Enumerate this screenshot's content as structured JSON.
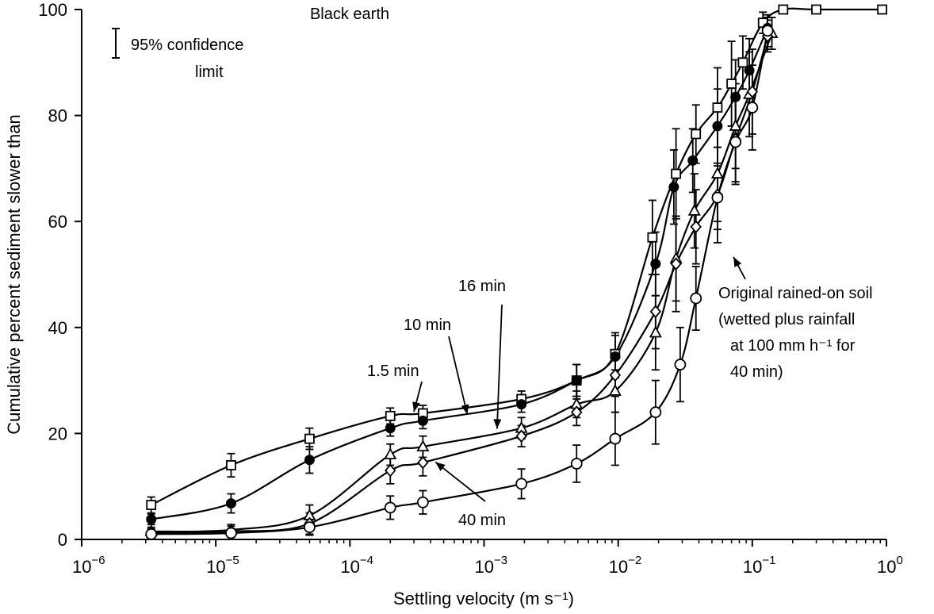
{
  "chart_data": {
    "type": "line",
    "title": "Black earth",
    "xlabel": "Settling velocity (m s⁻¹)",
    "ylabel": "Cumulative percent sediment slower than",
    "x_scale": "log",
    "xlim": [
      1e-06,
      1
    ],
    "ylim": [
      0,
      100
    ],
    "x_ticks": [
      {
        "value": 1e-06,
        "base": "10",
        "exp": "−6"
      },
      {
        "value": 1e-05,
        "base": "10",
        "exp": "−5"
      },
      {
        "value": 0.0001,
        "base": "10",
        "exp": "−4"
      },
      {
        "value": 0.001,
        "base": "10",
        "exp": "−3"
      },
      {
        "value": 0.01,
        "base": "10",
        "exp": "−2"
      },
      {
        "value": 0.1,
        "base": "10",
        "exp": "−1"
      },
      {
        "value": 1,
        "base": "10",
        "exp": "0"
      }
    ],
    "y_ticks": [
      0,
      20,
      40,
      60,
      80,
      100
    ],
    "grid": false,
    "legend_note": {
      "line1": "95% confidence",
      "line2": "limit"
    },
    "series": [
      {
        "name": "1.5 min",
        "marker": "square-open",
        "x": [
          3.3e-06,
          1.3e-05,
          5e-05,
          0.0002,
          0.00035,
          0.0019,
          0.0049,
          0.0095,
          0.018,
          0.027,
          0.038,
          0.055,
          0.07,
          0.085,
          0.12,
          0.17,
          0.3,
          0.93
        ],
        "y": [
          6.5,
          14,
          19,
          23.3,
          23.8,
          26.5,
          30,
          35,
          57,
          69,
          76.5,
          81.5,
          86,
          90,
          97.5,
          100,
          100,
          100
        ],
        "err": [
          1.5,
          2.2,
          2,
          1.5,
          1.5,
          1.5,
          3,
          4,
          7,
          8.5,
          5.5,
          7.5,
          8,
          5,
          2,
          0,
          0,
          0
        ]
      },
      {
        "name": "10 min",
        "marker": "circle-filled",
        "x": [
          3.3e-06,
          1.3e-05,
          5e-05,
          0.0002,
          0.00035,
          0.0019,
          0.0049,
          0.0095,
          0.019,
          0.026,
          0.036,
          0.055,
          0.075,
          0.095,
          0.13
        ],
        "y": [
          3.8,
          6.8,
          15,
          21,
          22.4,
          25.5,
          30,
          34.5,
          52,
          66.5,
          71.5,
          78,
          83.5,
          88.5,
          96.5
        ],
        "err": [
          1,
          1.8,
          2.5,
          1.5,
          1.5,
          1.5,
          3,
          4,
          6,
          7,
          6,
          7,
          7,
          6,
          2
        ]
      },
      {
        "name": "16 min",
        "marker": "triangle-open",
        "x": [
          3.3e-06,
          1.3e-05,
          5e-05,
          0.0002,
          0.00035,
          0.0019,
          0.0049,
          0.0095,
          0.019,
          0.027,
          0.037,
          0.055,
          0.075,
          0.095,
          0.14
        ],
        "y": [
          1.5,
          1.8,
          4.5,
          16,
          17.5,
          21,
          25.5,
          28,
          39,
          53,
          62,
          69,
          78,
          84,
          95.5
        ],
        "err": [
          0.8,
          1,
          2,
          2,
          2,
          2,
          2.5,
          4,
          7,
          8,
          7,
          9,
          8,
          8,
          3
        ]
      },
      {
        "name": "40 min",
        "marker": "diamond-open",
        "x": [
          3.3e-06,
          1.3e-05,
          5e-05,
          0.0002,
          0.00035,
          0.0019,
          0.0049,
          0.0095,
          0.019,
          0.027,
          0.038,
          0.055,
          0.075,
          0.1,
          0.13
        ],
        "y": [
          1.2,
          1.5,
          3,
          13,
          14.5,
          19.5,
          24,
          31,
          43,
          52,
          59,
          65,
          75.5,
          84.5,
          95
        ],
        "err": [
          0.8,
          1,
          2,
          2.5,
          2.5,
          2,
          2.5,
          4,
          7,
          9,
          7,
          9,
          8,
          8,
          3
        ]
      },
      {
        "name": "Original rained-on soil",
        "marker": "circle-open",
        "x": [
          3.3e-06,
          1.3e-05,
          5e-05,
          0.0002,
          0.00035,
          0.0019,
          0.0049,
          0.0095,
          0.019,
          0.029,
          0.038,
          0.055,
          0.075,
          0.1,
          0.13
        ],
        "y": [
          1,
          1.2,
          2.3,
          6,
          7,
          10.5,
          14.3,
          19,
          24,
          33,
          45.5,
          64.5,
          75,
          81.5,
          96
        ],
        "err": [
          0.5,
          0.8,
          1.5,
          2.2,
          2.2,
          2.8,
          3.5,
          5,
          6,
          7,
          6,
          6,
          8,
          8,
          3
        ]
      }
    ],
    "annotations": [
      {
        "id": "ann-1-5",
        "text": "1.5 min",
        "target_x": 0.0003,
        "target_y": 23.5
      },
      {
        "id": "ann-10",
        "text": "10 min",
        "target_x": 0.00075,
        "target_y": 23
      },
      {
        "id": "ann-16",
        "text": "16 min",
        "target_x": 0.00125,
        "target_y": 20
      },
      {
        "id": "ann-40",
        "text": "40 min",
        "target_x": 0.0004,
        "target_y": 15.5
      },
      {
        "id": "ann-orig",
        "lines": [
          "Original rained-on soil",
          "(wetted plus rainfall",
          "at 100 mm h⁻¹ for",
          "40 min)"
        ],
        "target_x": 0.065,
        "target_y": 53
      }
    ]
  }
}
